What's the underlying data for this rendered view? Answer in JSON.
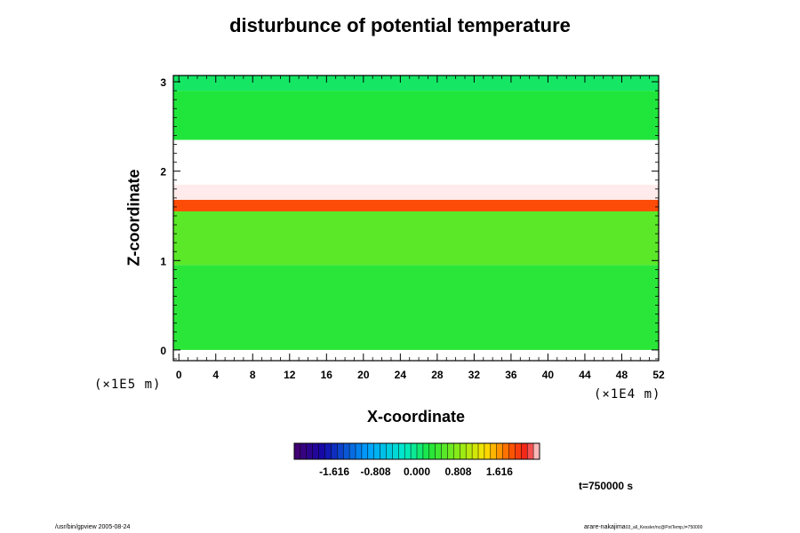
{
  "chart_data": {
    "type": "heatmap",
    "title": "disturbunce of potential temperature",
    "xlabel": "X-coordinate",
    "ylabel": "Z-coordinate",
    "x_unit": "(×1E4 m)",
    "y_unit": "(×1E5 m)",
    "x_ticks": [
      "0",
      "4",
      "8",
      "12",
      "16",
      "20",
      "24",
      "28",
      "32",
      "36",
      "40",
      "44",
      "48",
      "52"
    ],
    "y_ticks": [
      "0",
      "1",
      "2",
      "3"
    ],
    "xlim": [
      -0.6,
      52
    ],
    "ylim": [
      -0.12,
      3.07
    ],
    "colorbar": {
      "tick_labels": [
        "-1.616",
        "-0.808",
        "0.000",
        "0.808",
        "1.616"
      ],
      "tick_values": [
        -1.616,
        -0.808,
        0.0,
        0.808,
        1.616
      ],
      "range": [
        -2.4,
        2.4
      ]
    },
    "bands": [
      {
        "z": [
          0.0,
          0.95
        ],
        "value": 0.3
      },
      {
        "z": [
          0.95,
          1.55
        ],
        "value": 0.55
      },
      {
        "z": [
          1.55,
          1.68
        ],
        "value": 1.9
      },
      {
        "z": [
          1.68,
          1.85
        ],
        "value": 2.4
      },
      {
        "z": [
          1.85,
          2.35
        ],
        "value": 3.0
      },
      {
        "z": [
          2.35,
          2.9
        ],
        "value": 0.25
      },
      {
        "z": [
          2.9,
          3.07
        ],
        "value": 0.1
      }
    ],
    "time_label": "t=750000 s"
  },
  "footer": {
    "left": "/usr/bin/gpview 2005-08-24",
    "right": "arare-nakajima",
    "right_sub": "03_all_Kessler/nc@PotTemp,t=750000"
  },
  "colors": {
    "background": "#ffffff",
    "frame": "#000000"
  }
}
